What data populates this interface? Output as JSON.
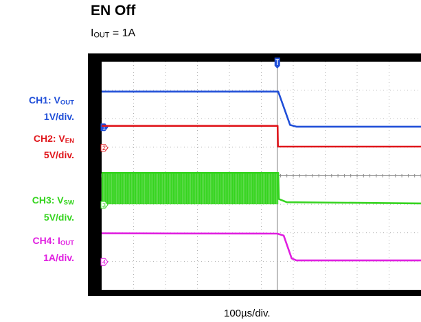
{
  "title": "EN Off",
  "subtitle": {
    "symbol": "I",
    "sub": "OUT",
    "rest": " = 1A"
  },
  "timebase": "100µs/div.",
  "channel_labels": [
    {
      "name_prefix": "CH1: V",
      "name_sub": "OUT",
      "scale": "1V/div.",
      "color": "#1f4ed8"
    },
    {
      "name_prefix": "CH2: V",
      "name_sub": "EN",
      "scale": "5V/div.",
      "color": "#e0161b"
    },
    {
      "name_prefix": "CH3: V",
      "name_sub": "SW",
      "scale": "5V/div.",
      "color": "#35d41f"
    },
    {
      "name_prefix": "CH4: I",
      "name_sub": "OUT",
      "scale": "1A/div.",
      "color": "#e01ee0"
    }
  ],
  "chart_data": {
    "type": "line",
    "x_unit": "divisions",
    "y_unit": "divisions",
    "xlim": [
      0,
      10
    ],
    "ylim": [
      0,
      8
    ],
    "grid": true,
    "trigger_position": 5.5,
    "series": [
      {
        "name": "CH1: VOUT",
        "color": "#1f4ed8",
        "marker": "1",
        "ground": 5.7,
        "points": [
          [
            0,
            6.95
          ],
          [
            5.53,
            6.95
          ],
          [
            5.9,
            5.78
          ],
          [
            6.1,
            5.72
          ],
          [
            10,
            5.72
          ]
        ]
      },
      {
        "name": "CH2: VEN",
        "color": "#e0161b",
        "marker": "2",
        "ground": 4.98,
        "points": [
          [
            0,
            5.75
          ],
          [
            5.51,
            5.75
          ],
          [
            5.52,
            5.02
          ],
          [
            10,
            5.02
          ]
        ]
      },
      {
        "name": "CH3: VSW",
        "color": "#35d41f",
        "marker": "3",
        "ground": 2.98,
        "switching_band": [
          4.1,
          3.0
        ],
        "points": [
          [
            0,
            4.1
          ],
          [
            5.53,
            4.1
          ],
          [
            5.55,
            3.18
          ],
          [
            5.8,
            3.07
          ],
          [
            10,
            3.03
          ]
        ]
      },
      {
        "name": "CH4: IOUT",
        "color": "#e01ee0",
        "marker": "4",
        "ground": 0.98,
        "points": [
          [
            0,
            1.98
          ],
          [
            5.5,
            1.97
          ],
          [
            5.7,
            1.9
          ],
          [
            5.95,
            1.1
          ],
          [
            6.1,
            1.03
          ],
          [
            10,
            1.03
          ]
        ]
      }
    ]
  }
}
